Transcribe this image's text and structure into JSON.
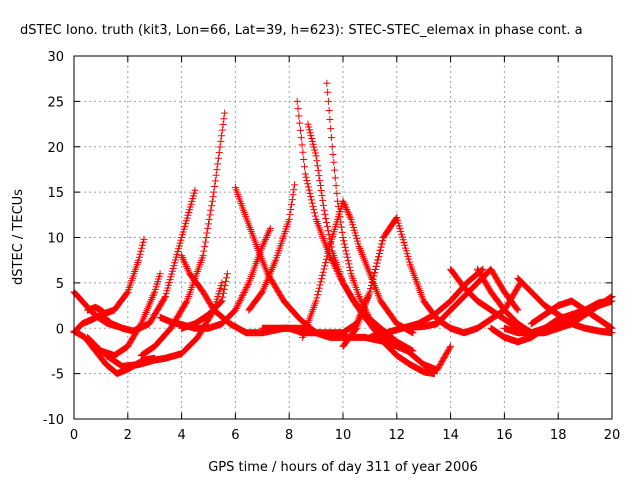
{
  "chart_data": {
    "type": "scatter",
    "title": "dSTEC Iono. truth (kit3, Lon=66, Lat=39, h=623): STEC-STEC_elemax in phase cont. a",
    "xlabel": "GPS time / hours of day 311 of year 2006",
    "ylabel": "dSTEC  / TECUs",
    "xlim": [
      0,
      20
    ],
    "ylim": [
      -10,
      30
    ],
    "xticks": [
      "0",
      "2",
      "4",
      "6",
      "8",
      "10",
      "12",
      "14",
      "16",
      "18",
      "20"
    ],
    "yticks": [
      "-10",
      "-5",
      "0",
      "5",
      "10",
      "15",
      "20",
      "25",
      "30"
    ],
    "grid": true,
    "legend": "none",
    "marker": "plus",
    "color": "#ff0000",
    "series": [
      {
        "x": [
          0.0,
          0.3,
          0.6,
          0.9,
          1.2,
          1.6
        ],
        "y": [
          4.0,
          3.0,
          2.0,
          1.2,
          0.6,
          0.2
        ]
      },
      {
        "x": [
          0.0,
          0.3,
          0.7,
          1.0,
          1.5,
          2.0,
          2.4,
          2.6
        ],
        "y": [
          -0.5,
          0.5,
          1.0,
          1.5,
          2.0,
          4.0,
          7.5,
          9.8
        ]
      },
      {
        "x": [
          0.0,
          0.4,
          0.8,
          1.2,
          1.6,
          2.0,
          2.6,
          3.0
        ],
        "y": [
          -0.3,
          -1.0,
          -2.5,
          -4.0,
          -5.0,
          -4.5,
          -3.5,
          -3.3
        ]
      },
      {
        "x": [
          0.5,
          0.8,
          1.0,
          1.2
        ],
        "y": [
          2.0,
          2.3,
          2.0,
          1.5
        ]
      },
      {
        "x": [
          0.5,
          1.0,
          1.5,
          2.0,
          2.5,
          3.0,
          3.2
        ],
        "y": [
          -1.0,
          -2.5,
          -3.0,
          -2.0,
          0.5,
          4.0,
          6.0
        ]
      },
      {
        "x": [
          1.0,
          1.4,
          1.8,
          2.2,
          2.8,
          3.4,
          4.0,
          4.5
        ],
        "y": [
          1.5,
          0.5,
          0.0,
          -0.3,
          0.5,
          3.5,
          10.0,
          15.2
        ]
      },
      {
        "x": [
          1.2,
          1.8,
          2.4,
          3.0,
          3.4,
          4.0,
          4.6,
          5.2,
          5.5
        ],
        "y": [
          -3.0,
          -4.2,
          -4.0,
          -3.5,
          -3.3,
          -2.8,
          -1.0,
          2.0,
          5.0
        ]
      },
      {
        "x": [
          2.5,
          3.0,
          3.6,
          4.2,
          4.8,
          5.2,
          5.6
        ],
        "y": [
          -3.0,
          -2.0,
          0.0,
          3.0,
          8.0,
          15.0,
          23.7
        ]
      },
      {
        "x": [
          3.2,
          3.6,
          4.0,
          4.5
        ],
        "y": [
          1.2,
          0.7,
          0.4,
          0.0
        ]
      },
      {
        "x": [
          4.0,
          4.3,
          4.8,
          5.2,
          5.8,
          6.4,
          7.0,
          7.8,
          8.6
        ],
        "y": [
          8.0,
          6.0,
          4.0,
          2.0,
          0.5,
          -0.5,
          -0.5,
          0.0,
          0.0
        ]
      },
      {
        "x": [
          4.0,
          4.5,
          5.0,
          5.5,
          5.7
        ],
        "y": [
          0.0,
          0.5,
          1.5,
          3.0,
          6.0
        ]
      },
      {
        "x": [
          4.5,
          5.0,
          5.5,
          6.0,
          6.5,
          7.0,
          7.3
        ],
        "y": [
          0.0,
          0.0,
          0.5,
          2.0,
          5.0,
          9.0,
          11.0
        ]
      },
      {
        "x": [
          6.0,
          6.3,
          6.8,
          7.2,
          7.8,
          8.4,
          9.0,
          9.5,
          10.0,
          10.8,
          11.6,
          12.4,
          13.0,
          13.5,
          14.0
        ],
        "y": [
          15.5,
          13.0,
          9.0,
          6.0,
          3.0,
          1.0,
          -0.5,
          -1.0,
          -1.0,
          -1.0,
          -1.5,
          -2.5,
          -4.0,
          -4.6,
          -2.0
        ]
      },
      {
        "x": [
          6.5,
          7.0,
          7.5,
          8.0,
          8.2
        ],
        "y": [
          2.0,
          4.0,
          7.5,
          12.0,
          15.8
        ]
      },
      {
        "x": [
          8.3,
          8.6,
          9.0,
          9.5,
          10.0,
          10.5,
          11.0,
          11.5,
          12.0,
          12.5,
          13.0,
          13.4
        ],
        "y": [
          25.0,
          17.0,
          12.0,
          8.0,
          5.0,
          2.5,
          0.5,
          -1.5,
          -3.0,
          -4.0,
          -4.8,
          -5.0
        ]
      },
      {
        "x": [
          8.7,
          9.0,
          9.3,
          9.6,
          10.0,
          10.4,
          10.8,
          11.4,
          12.0,
          12.6
        ],
        "y": [
          22.5,
          19.0,
          13.0,
          8.5,
          5.0,
          3.0,
          1.5,
          0.0,
          -1.5,
          -2.5
        ]
      },
      {
        "x": [
          9.4,
          9.6,
          9.8,
          10.0,
          10.3,
          10.6,
          11.0,
          11.4,
          11.8,
          12.2
        ],
        "y": [
          27.0,
          20.0,
          14.0,
          10.0,
          6.0,
          3.5,
          1.0,
          -0.5,
          -1.5,
          -2.0
        ]
      },
      {
        "x": [
          8.5,
          9.0,
          9.5,
          9.8,
          10.0,
          10.3,
          10.6,
          11.0,
          11.4,
          12.0,
          12.6
        ],
        "y": [
          -1.0,
          3.0,
          9.0,
          12.0,
          14.0,
          12.0,
          9.0,
          6.0,
          3.0,
          0.5,
          -0.5
        ]
      },
      {
        "x": [
          7.0,
          7.5,
          8.0,
          8.5,
          9.0,
          9.5,
          10.0
        ],
        "y": [
          0.0,
          0.0,
          0.0,
          -0.5,
          -0.5,
          -0.5,
          -0.5
        ]
      },
      {
        "x": [
          10.0,
          10.5,
          11.0,
          11.5,
          12.0,
          12.5,
          13.0,
          13.5,
          14.0,
          14.5,
          15.0,
          15.5,
          16.0,
          16.6
        ],
        "y": [
          -0.5,
          0.5,
          4.0,
          10.0,
          12.2,
          7.0,
          3.0,
          1.0,
          0.0,
          -0.5,
          0.0,
          1.0,
          2.0,
          5.0
        ]
      },
      {
        "x": [
          10.0,
          10.5,
          11.0,
          11.5
        ],
        "y": [
          -2.0,
          0.0,
          4.0,
          10.0
        ]
      },
      {
        "x": [
          11.0,
          11.6,
          12.2,
          12.8,
          13.4,
          14.0,
          14.6,
          15.2
        ],
        "y": [
          -1.0,
          -0.5,
          0.0,
          0.5,
          1.5,
          3.0,
          5.0,
          6.5
        ]
      },
      {
        "x": [
          14.0,
          14.5,
          15.0,
          15.5,
          16.0,
          16.5,
          17.0
        ],
        "y": [
          6.5,
          4.5,
          3.0,
          2.0,
          1.0,
          0.0,
          -0.5
        ]
      },
      {
        "x": [
          12.0,
          13.0,
          13.5,
          14.0,
          14.5,
          15.0,
          15.5,
          16.0,
          16.5
        ],
        "y": [
          0.0,
          0.2,
          0.5,
          2.0,
          3.5,
          5.0,
          6.5,
          4.0,
          2.0
        ]
      },
      {
        "x": [
          15.0,
          15.5,
          16.0,
          16.5,
          17.0,
          17.5,
          18.0,
          18.5,
          19.0,
          19.5,
          20.0
        ],
        "y": [
          6.5,
          4.0,
          2.0,
          0.5,
          -0.5,
          -0.5,
          0.0,
          0.5,
          1.5,
          2.5,
          3.5
        ]
      },
      {
        "x": [
          16.0,
          16.5,
          17.0,
          17.5,
          18.0,
          18.5,
          19.0,
          19.5,
          20.0
        ],
        "y": [
          0.0,
          -0.5,
          -0.5,
          0.0,
          0.5,
          1.0,
          2.0,
          2.8,
          3.0
        ]
      },
      {
        "x": [
          15.5,
          16.0,
          16.5,
          17.0,
          17.5,
          18.0,
          18.5,
          19.0,
          19.5,
          20.0
        ],
        "y": [
          0.0,
          -1.0,
          -1.5,
          -1.0,
          0.0,
          1.0,
          1.5,
          2.0,
          2.5,
          3.0
        ]
      },
      {
        "x": [
          16.5,
          17.0,
          17.5,
          18.0,
          18.5,
          19.0,
          19.5,
          20.0
        ],
        "y": [
          5.5,
          4.0,
          2.5,
          1.5,
          0.5,
          0.0,
          -0.3,
          -0.5
        ]
      },
      {
        "x": [
          17.0,
          17.5,
          18.0,
          18.5,
          19.0,
          19.5,
          20.0
        ],
        "y": [
          0.5,
          1.5,
          2.5,
          3.0,
          2.0,
          1.0,
          0.0
        ]
      }
    ]
  }
}
